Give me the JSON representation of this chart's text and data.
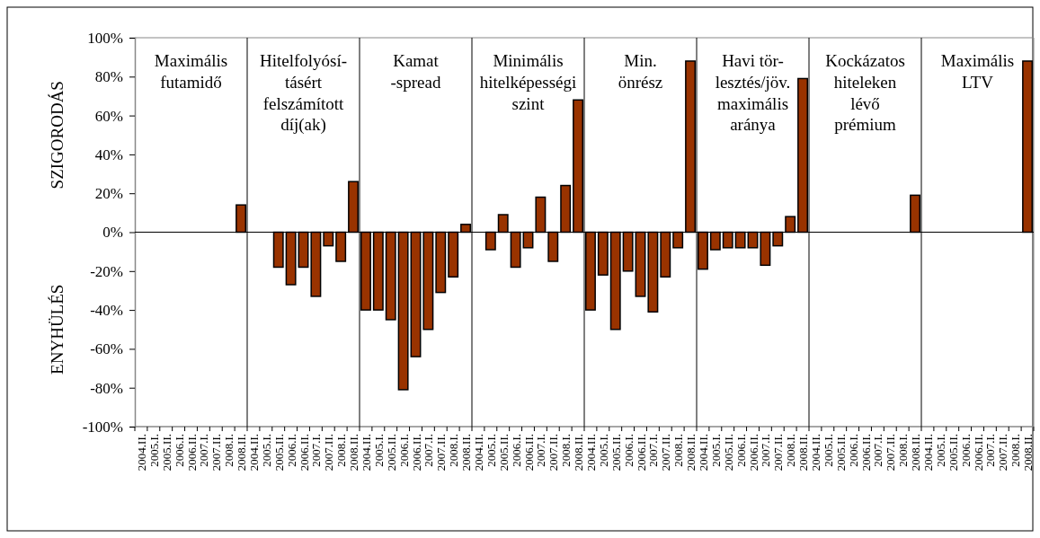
{
  "chart_data": {
    "type": "bar",
    "ylabel": "SZIGORODÁS",
    "categories": [
      "2004.II.",
      "2005.I.",
      "2005.II.",
      "2006.I.",
      "2006.II.",
      "2007.I.",
      "2007.II.",
      "2008.I.",
      "2008.II.",
      "2004.II.",
      "2005.I.",
      "2005.II.",
      "2006.I.",
      "2006.II.",
      "2007.I.",
      "2007.II.",
      "2008.I.",
      "2008.II.",
      "2004.II.",
      "2005.I.",
      "2005.II.",
      "2006.I.",
      "2006.II.",
      "2007.I.",
      "2007.II.",
      "2008.I.",
      "2008.II.",
      "2004.II.",
      "2005.I.",
      "2005.II.",
      "2006.I.",
      "2006.II.",
      "2007.I.",
      "2007.II.",
      "2008.I.",
      "2008.II.",
      "2004.II.",
      "2005.I.",
      "2005.II.",
      "2006.I.",
      "2006.II.",
      "2007.I.",
      "2007.II.",
      "2008.I.",
      "2008.II.",
      "2004.II.",
      "2005.I.",
      "2005.II.",
      "2006.I.",
      "2006.II.",
      "2007.I.",
      "2007.II.",
      "2008.I.",
      "2008.II.",
      "2004.II.",
      "2005.I.",
      "2005.II.",
      "2006.I.",
      "2006.II.",
      "2007.I.",
      "2007.II.",
      "2008.I.",
      "2008.II.",
      "2004.II.",
      "2005.I.",
      "2005.II.",
      "2006.I.",
      "2006.II.",
      "2007.I.",
      "2007.II.",
      "2008.I.",
      "2008.II."
    ],
    "values": [
      null,
      null,
      null,
      null,
      null,
      null,
      null,
      null,
      14,
      null,
      null,
      -18,
      -27,
      -18,
      -33,
      -7,
      -15,
      26,
      -40,
      -40,
      -45,
      -81,
      -64,
      -50,
      -31,
      -23,
      4,
      null,
      -9,
      9,
      -18,
      -8,
      18,
      -15,
      24,
      68,
      -40,
      -22,
      -50,
      -20,
      -33,
      -41,
      -23,
      -8,
      88,
      -19,
      -9,
      -8,
      -8,
      -8,
      -17,
      -7,
      8,
      79,
      null,
      null,
      null,
      null,
      null,
      null,
      null,
      null,
      19,
      null,
      null,
      null,
      null,
      null,
      null,
      null,
      null,
      88
    ],
    "color": "#993300",
    "ylim": [
      -100,
      100
    ],
    "yticks": [
      {
        "value": -100,
        "label": "-100%"
      },
      {
        "value": -80,
        "label": "-80%"
      },
      {
        "value": -60,
        "label": "-60%"
      },
      {
        "value": -40,
        "label": "-40%"
      },
      {
        "value": -20,
        "label": "-20%"
      },
      {
        "value": 0,
        "label": "0%"
      },
      {
        "value": 20,
        "label": "20%"
      },
      {
        "value": 40,
        "label": "40%"
      },
      {
        "value": 60,
        "label": "60%"
      },
      {
        "value": 80,
        "label": "80%"
      },
      {
        "value": 100,
        "label": "100%"
      }
    ],
    "annotations": [
      "ENYHÜLÉS",
      "Maximális\nfutamidő",
      "Hitelfolyósí-\ntásért\nfelszámított\ndíj(ak)",
      "Kamat\n-spread",
      "Minimális\nhitelképességi\nszint",
      "Min.\nönrész",
      "Havi tör-\nlesztés/jöv.\nmaximális\naránya",
      "Kockázatos\nhiteleken\nlévő\nprémium",
      "Maximális\nLTV"
    ]
  }
}
